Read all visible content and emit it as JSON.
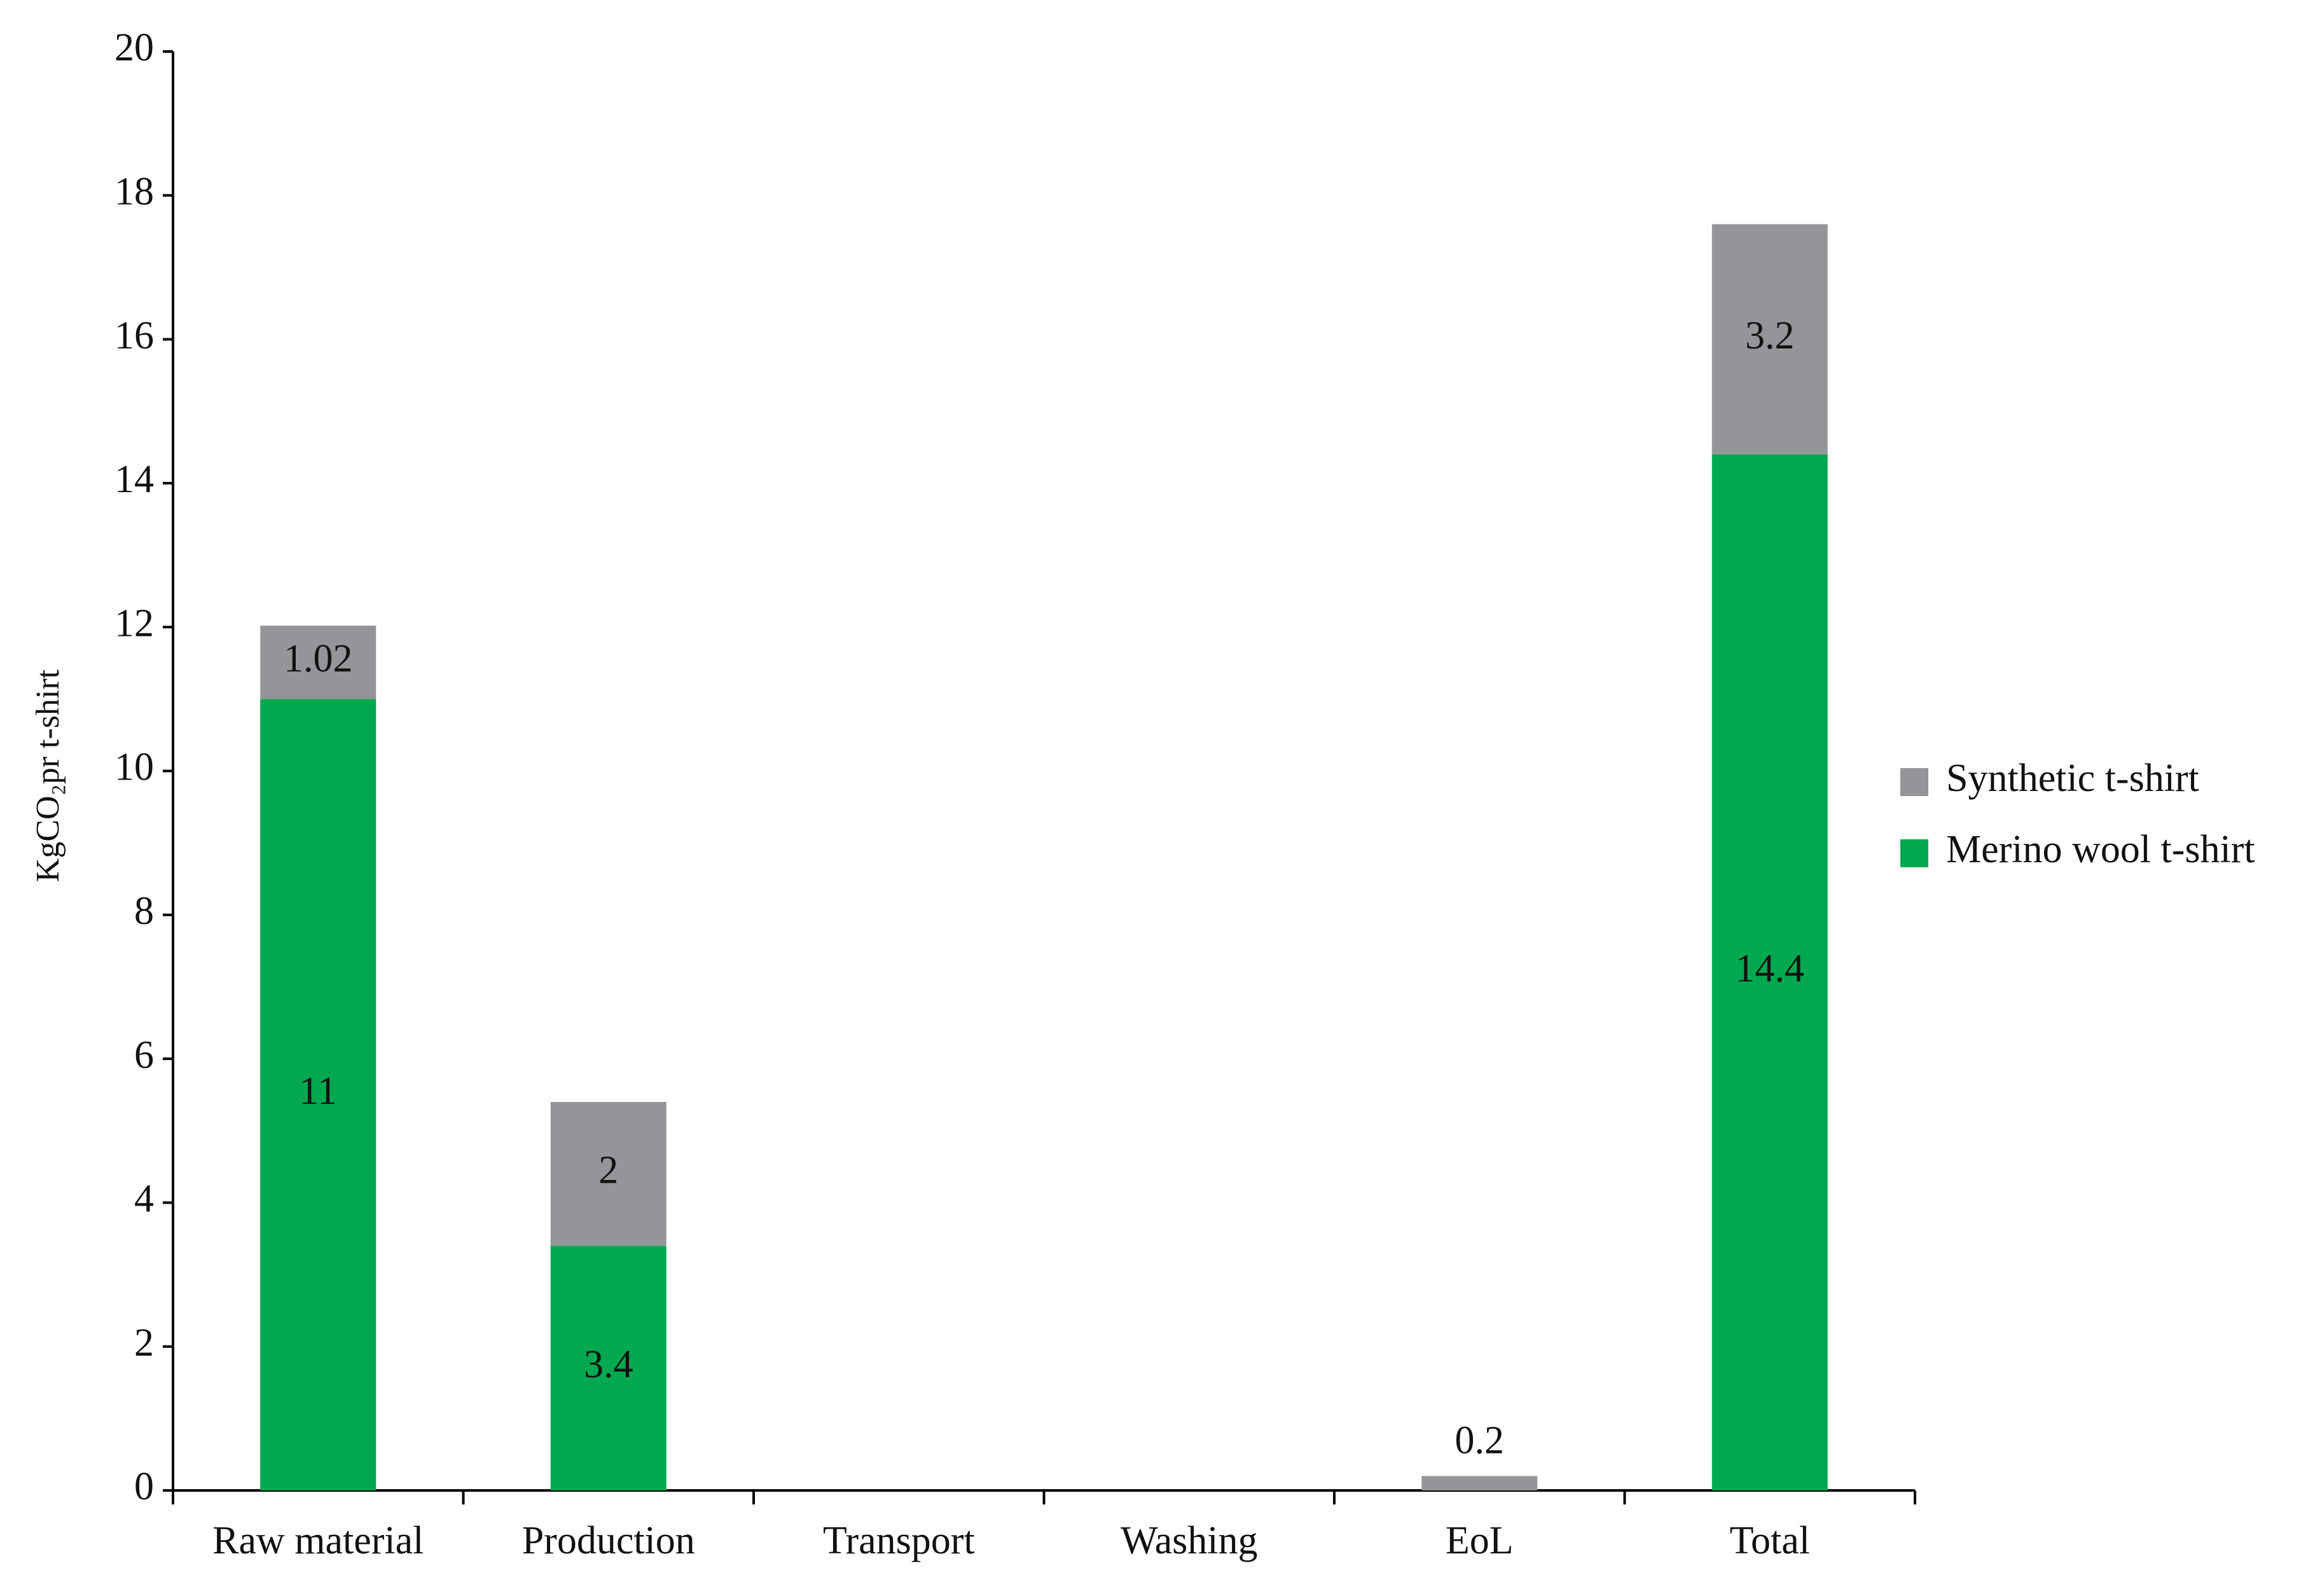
{
  "chart_data": {
    "type": "stacked-bar",
    "y_label": "KgCO₂pr t-shirt",
    "categories": [
      "Raw material",
      "Production",
      "Transport",
      "Washing",
      "EoL",
      "Total"
    ],
    "series": [
      {
        "name": "Merino wool t-shirt",
        "color": "#00a84f",
        "values": [
          11,
          3.4,
          null,
          null,
          null,
          14.4
        ]
      },
      {
        "name": "Synthetic t-shirt",
        "color": "#939598",
        "values": [
          1.02,
          2,
          null,
          null,
          0.2,
          3.2
        ]
      }
    ],
    "ylim": [
      0,
      20
    ],
    "yticks": [
      0,
      2,
      4,
      6,
      8,
      10,
      12,
      14,
      16,
      18,
      20
    ],
    "data_labels": true,
    "legend": "right"
  }
}
